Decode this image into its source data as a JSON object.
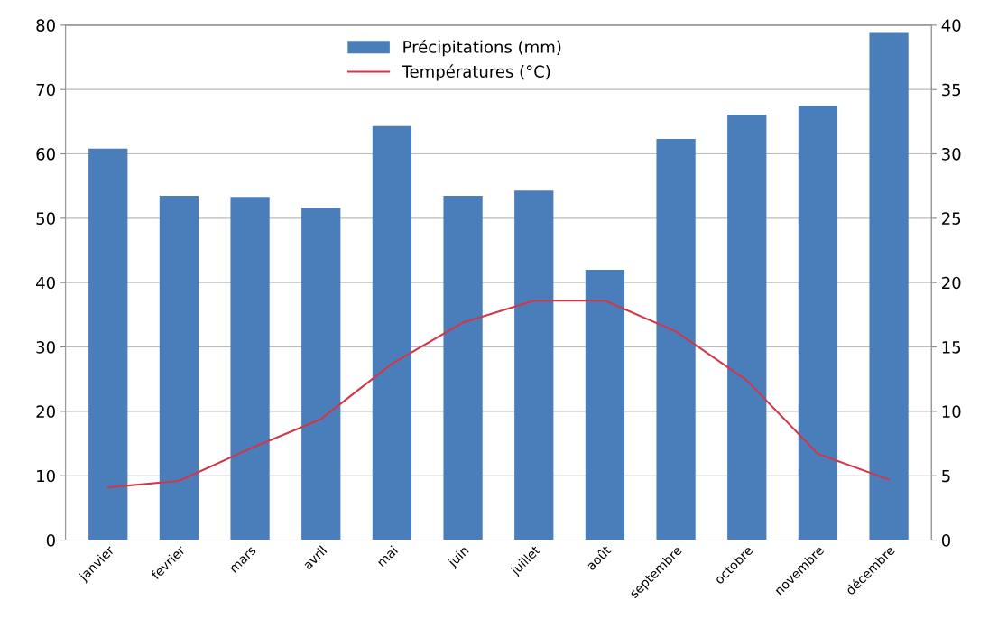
{
  "chart_data": {
    "type": "bar",
    "categories": [
      "janvier",
      "fevrier",
      "mars",
      "avril",
      "mai",
      "juin",
      "juillet",
      "août",
      "septembre",
      "octobre",
      "novembre",
      "décembre"
    ],
    "series": [
      {
        "name": "Précipitations (mm)",
        "color": "#4a7ebb",
        "values": [
          60.8,
          53.5,
          53.3,
          51.6,
          64.3,
          53.5,
          54.3,
          42,
          62.3,
          66.1,
          67.5,
          78.8
        ]
      },
      {
        "name": "Températures (°C)",
        "type": "line",
        "axis": "y2",
        "color": "#d0384a",
        "values": [
          4.1,
          4.6,
          7.1,
          9.4,
          13.7,
          16.9,
          18.6,
          18.6,
          16.2,
          12.4,
          6.7,
          4.7
        ]
      }
    ],
    "ylim": [
      0,
      80
    ],
    "yticks": [
      0,
      10,
      20,
      30,
      40,
      50,
      60,
      70,
      80
    ],
    "y2lim": [
      0,
      40
    ],
    "y2ticks": [
      0,
      5,
      10,
      15,
      20,
      25,
      30,
      35,
      40
    ],
    "grid": "y",
    "legend": "top",
    "marker": "none",
    "line_style": "solid"
  }
}
